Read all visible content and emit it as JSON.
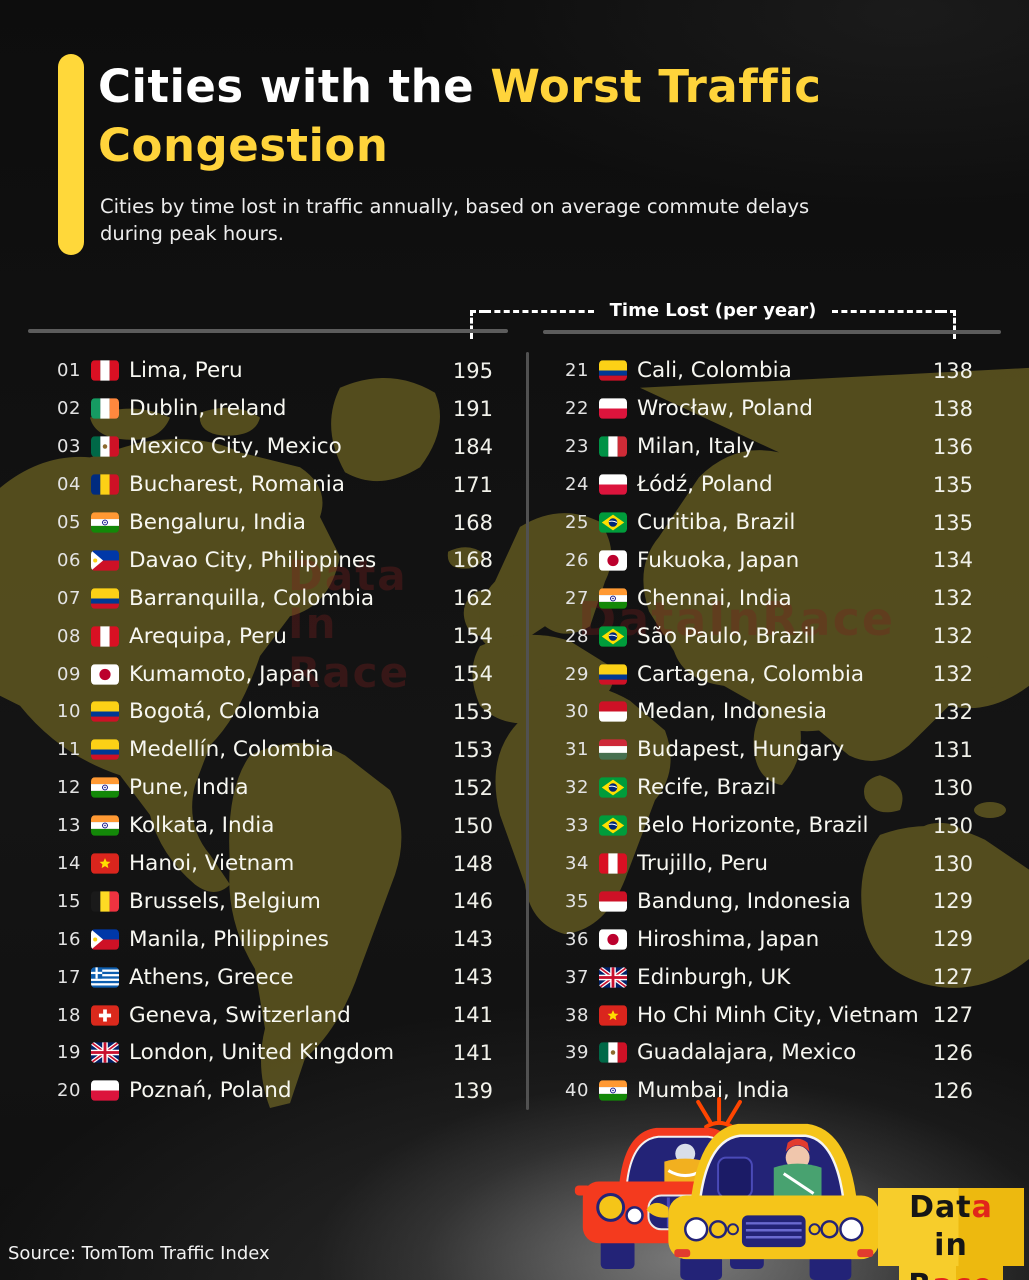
{
  "header": {
    "title_white": "Cities with the ",
    "title_yellow": "Worst Traffic Congestion",
    "subtitle": "Cities by time lost in traffic annually, based on average commute delays during peak hours."
  },
  "table": {
    "value_header": "Time Lost (per year)",
    "rankings": [
      {
        "rank": "01",
        "city": "Lima, Peru",
        "flag": "pe",
        "value": 195
      },
      {
        "rank": "02",
        "city": "Dublin, Ireland",
        "flag": "ie",
        "value": 191
      },
      {
        "rank": "03",
        "city": "Mexico City, Mexico",
        "flag": "mx",
        "value": 184
      },
      {
        "rank": "04",
        "city": "Bucharest, Romania",
        "flag": "ro",
        "value": 171
      },
      {
        "rank": "05",
        "city": "Bengaluru, India",
        "flag": "in",
        "value": 168
      },
      {
        "rank": "06",
        "city": "Davao City, Philippines",
        "flag": "ph",
        "value": 168
      },
      {
        "rank": "07",
        "city": "Barranquilla, Colombia",
        "flag": "co",
        "value": 162
      },
      {
        "rank": "08",
        "city": "Arequipa, Peru",
        "flag": "pe",
        "value": 154
      },
      {
        "rank": "09",
        "city": "Kumamoto, Japan",
        "flag": "jp",
        "value": 154
      },
      {
        "rank": "10",
        "city": "Bogotá, Colombia",
        "flag": "co",
        "value": 153
      },
      {
        "rank": "11",
        "city": "Medellín, Colombia",
        "flag": "co",
        "value": 153
      },
      {
        "rank": "12",
        "city": "Pune, India",
        "flag": "in",
        "value": 152
      },
      {
        "rank": "13",
        "city": "Kolkata, India",
        "flag": "in",
        "value": 150
      },
      {
        "rank": "14",
        "city": "Hanoi, Vietnam",
        "flag": "vn",
        "value": 148
      },
      {
        "rank": "15",
        "city": "Brussels, Belgium",
        "flag": "be",
        "value": 146
      },
      {
        "rank": "16",
        "city": "Manila, Philippines",
        "flag": "ph",
        "value": 143
      },
      {
        "rank": "17",
        "city": "Athens, Greece",
        "flag": "gr",
        "value": 143
      },
      {
        "rank": "18",
        "city": "Geneva, Switzerland",
        "flag": "ch",
        "value": 141
      },
      {
        "rank": "19",
        "city": "London, United Kingdom",
        "flag": "gb",
        "value": 141
      },
      {
        "rank": "20",
        "city": "Poznań, Poland",
        "flag": "pl",
        "value": 139
      },
      {
        "rank": "21",
        "city": "Cali, Colombia",
        "flag": "co",
        "value": 138
      },
      {
        "rank": "22",
        "city": "Wrocław, Poland",
        "flag": "pl",
        "value": 138
      },
      {
        "rank": "23",
        "city": "Milan, Italy",
        "flag": "it",
        "value": 136
      },
      {
        "rank": "24",
        "city": "Łódź, Poland",
        "flag": "pl",
        "value": 135
      },
      {
        "rank": "25",
        "city": "Curitiba, Brazil",
        "flag": "br",
        "value": 135
      },
      {
        "rank": "26",
        "city": "Fukuoka, Japan",
        "flag": "jp",
        "value": 134
      },
      {
        "rank": "27",
        "city": "Chennai, India",
        "flag": "in",
        "value": 132
      },
      {
        "rank": "28",
        "city": "São Paulo, Brazil",
        "flag": "br",
        "value": 132
      },
      {
        "rank": "29",
        "city": "Cartagena, Colombia",
        "flag": "co",
        "value": 132
      },
      {
        "rank": "30",
        "city": "Medan, Indonesia",
        "flag": "id",
        "value": 132
      },
      {
        "rank": "31",
        "city": "Budapest, Hungary",
        "flag": "hu",
        "value": 131
      },
      {
        "rank": "32",
        "city": "Recife, Brazil",
        "flag": "br",
        "value": 130
      },
      {
        "rank": "33",
        "city": "Belo Horizonte, Brazil",
        "flag": "br",
        "value": 130
      },
      {
        "rank": "34",
        "city": "Trujillo, Peru",
        "flag": "pe",
        "value": 130
      },
      {
        "rank": "35",
        "city": "Bandung, Indonesia",
        "flag": "id",
        "value": 129
      },
      {
        "rank": "36",
        "city": "Hiroshima, Japan",
        "flag": "jp",
        "value": 129
      },
      {
        "rank": "37",
        "city": "Edinburgh, UK",
        "flag": "gb",
        "value": 127
      },
      {
        "rank": "38",
        "city": "Ho Chi Minh City, Vietnam",
        "flag": "vn",
        "value": 127
      },
      {
        "rank": "39",
        "city": "Guadalajara, Mexico",
        "flag": "mx",
        "value": 126
      },
      {
        "rank": "40",
        "city": "Mumbai, India",
        "flag": "in",
        "value": 126
      }
    ]
  },
  "chart_data": {
    "type": "table",
    "title": "Cities with the Worst Traffic Congestion",
    "subtitle": "Cities by time lost in traffic annually, based on average commute delays during peak hours.",
    "value_label": "Time Lost (per year)",
    "categories": [
      "Lima, Peru",
      "Dublin, Ireland",
      "Mexico City, Mexico",
      "Bucharest, Romania",
      "Bengaluru, India",
      "Davao City, Philippines",
      "Barranquilla, Colombia",
      "Arequipa, Peru",
      "Kumamoto, Japan",
      "Bogotá, Colombia",
      "Medellín, Colombia",
      "Pune, India",
      "Kolkata, India",
      "Hanoi, Vietnam",
      "Brussels, Belgium",
      "Manila, Philippines",
      "Athens, Greece",
      "Geneva, Switzerland",
      "London, United Kingdom",
      "Poznań, Poland",
      "Cali, Colombia",
      "Wrocław, Poland",
      "Milan, Italy",
      "Łódź, Poland",
      "Curitiba, Brazil",
      "Fukuoka, Japan",
      "Chennai, India",
      "São Paulo, Brazil",
      "Cartagena, Colombia",
      "Medan, Indonesia",
      "Budapest, Hungary",
      "Recife, Brazil",
      "Belo Horizonte, Brazil",
      "Trujillo, Peru",
      "Bandung, Indonesia",
      "Hiroshima, Japan",
      "Edinburgh, UK",
      "Ho Chi Minh City, Vietnam",
      "Guadalajara, Mexico",
      "Mumbai, India"
    ],
    "values": [
      195,
      191,
      184,
      171,
      168,
      168,
      162,
      154,
      154,
      153,
      153,
      152,
      150,
      148,
      146,
      143,
      143,
      141,
      141,
      139,
      138,
      138,
      136,
      135,
      135,
      134,
      132,
      132,
      132,
      132,
      131,
      130,
      130,
      130,
      129,
      129,
      127,
      127,
      126,
      126
    ]
  },
  "watermarks": {
    "side": [
      "Data",
      "In",
      "Race"
    ],
    "center": "DataInRace"
  },
  "logo": {
    "line1": [
      {
        "text": "Dat",
        "color": "#161616"
      },
      {
        "text": "a",
        "color": "#E1251B"
      },
      {
        "text": " in",
        "color": "#161616"
      }
    ],
    "line2": [
      {
        "text": "R",
        "color": "#161616"
      },
      {
        "text": "ace",
        "color": "#E1251B"
      }
    ]
  },
  "source": "Source: TomTom Traffic Index",
  "colors": {
    "accent_yellow": "#FFD43B",
    "background": "#121212",
    "map_silhouette": "#59511F",
    "rule_gray": "#5C5C5C",
    "watermark_red": "#7C1F1F",
    "logo_yellow": "#F5C518",
    "logo_red": "#E1251B"
  }
}
